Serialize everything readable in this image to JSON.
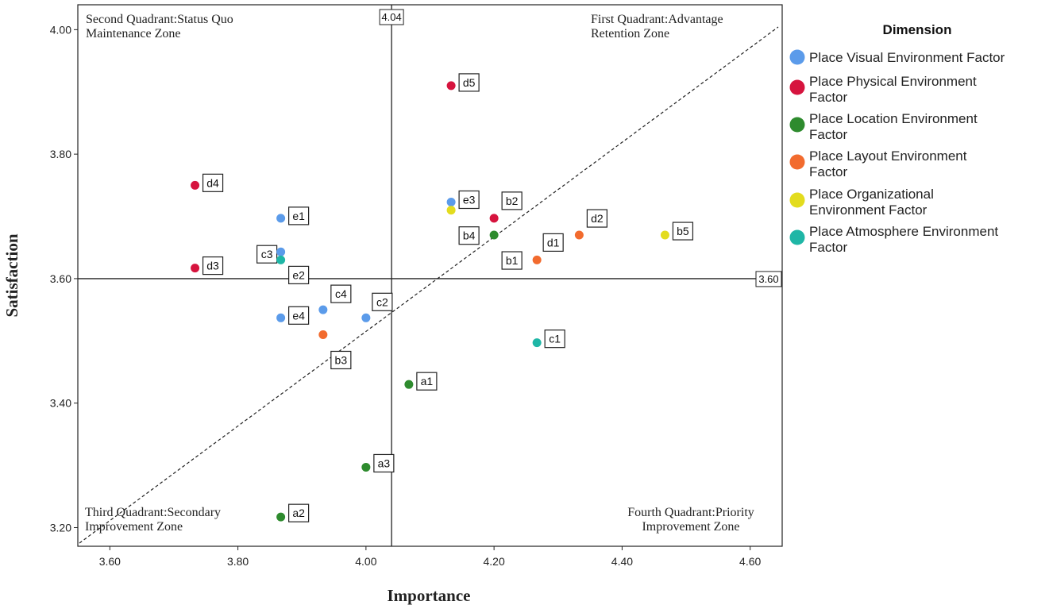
{
  "chart_data": {
    "type": "scatter",
    "xlabel": "Importance",
    "ylabel": "Satisfaction",
    "xlim": [
      3.55,
      4.65
    ],
    "ylim": [
      3.17,
      4.04
    ],
    "x_ticks": [
      "3.60",
      "3.80",
      "4.00",
      "4.20",
      "4.40",
      "4.60"
    ],
    "y_ticks": [
      "3.20",
      "3.40",
      "3.60",
      "3.80",
      "4.00"
    ],
    "reference_lines": {
      "x": 4.04,
      "x_label": "4.04",
      "y": 3.6,
      "y_label": "3.60",
      "diagonal": true
    },
    "quadrants": [
      {
        "name": "second",
        "lines": [
          "Second Quadrant:Status Quo",
          "Maintenance Zone"
        ]
      },
      {
        "name": "first",
        "lines": [
          "First Quadrant:Advantage",
          "Retention Zone"
        ]
      },
      {
        "name": "third",
        "lines": [
          "Third Quadrant:Secondary",
          "Improvement Zone"
        ]
      },
      {
        "name": "fourth",
        "lines": [
          "Fourth Quadrant:Priority",
          "Improvement Zone"
        ]
      }
    ],
    "legend": {
      "title": "Dimension",
      "entries": [
        {
          "lines": [
            "Place Visual Environment Factor"
          ],
          "color": "#5b9bea"
        },
        {
          "lines": [
            "Place Physical Environment",
            "Factor"
          ],
          "color": "#d6143e"
        },
        {
          "lines": [
            "Place Location Environment",
            "Factor"
          ],
          "color": "#2e8b2e"
        },
        {
          "lines": [
            "Place Layout Environment",
            "Factor"
          ],
          "color": "#f26b2e"
        },
        {
          "lines": [
            "Place Organizational",
            "Environment Factor"
          ],
          "color": "#e3dc1e"
        },
        {
          "lines": [
            "Place Atmosphere Environment",
            "Factor"
          ],
          "color": "#1fb6a6"
        }
      ]
    },
    "series": [
      {
        "name": "Place Visual Environment Factor",
        "color": "#5b9bea",
        "points": [
          {
            "label": "e1",
            "x": 3.867,
            "y": 3.697,
            "dx": 10,
            "dy": -14
          },
          {
            "label": "c3",
            "x": 3.867,
            "y": 3.643,
            "dx": -30,
            "dy": -8
          },
          {
            "label": "e4",
            "x": 3.867,
            "y": 3.537,
            "dx": 10,
            "dy": -14
          },
          {
            "label": "c4",
            "x": 3.933,
            "y": 3.55,
            "dx": 10,
            "dy": -31
          },
          {
            "label": "c2",
            "x": 4.0,
            "y": 3.537,
            "dx": 8,
            "dy": -31
          },
          {
            "label": "e3",
            "x": 4.133,
            "y": 3.723,
            "dx": 10,
            "dy": -14
          }
        ]
      },
      {
        "name": "Place Physical Environment Factor",
        "color": "#d6143e",
        "points": [
          {
            "label": "d4",
            "x": 3.733,
            "y": 3.75,
            "dx": 10,
            "dy": -14
          },
          {
            "label": "d3",
            "x": 3.733,
            "y": 3.617,
            "dx": 10,
            "dy": -14
          },
          {
            "label": "d5",
            "x": 4.133,
            "y": 3.91,
            "dx": 10,
            "dy": -15
          },
          {
            "label": "b2",
            "x": 4.2,
            "y": 3.697,
            "dx": 10,
            "dy": -33
          }
        ]
      },
      {
        "name": "Place Location Environment Factor",
        "color": "#2e8b2e",
        "points": [
          {
            "label": "b1",
            "x": 4.2,
            "y": 3.67,
            "dx": 10,
            "dy": 21
          },
          {
            "label": "a1",
            "x": 4.067,
            "y": 3.43,
            "dx": 10,
            "dy": -15
          },
          {
            "label": "a3",
            "x": 4.0,
            "y": 3.297,
            "dx": 10,
            "dy": -16
          },
          {
            "label": "a2",
            "x": 3.867,
            "y": 3.217,
            "dx": 10,
            "dy": -16
          }
        ]
      },
      {
        "name": "Place Layout Environment Factor",
        "color": "#f26b2e",
        "points": [
          {
            "label": "d2",
            "x": 4.333,
            "y": 3.67,
            "dx": 10,
            "dy": -32
          },
          {
            "label": "d1",
            "x": 4.267,
            "y": 3.63,
            "dx": 8,
            "dy": -33
          },
          {
            "label": "b3",
            "x": 3.933,
            "y": 3.51,
            "dx": 10,
            "dy": 21
          }
        ]
      },
      {
        "name": "Place Organizational Environment Factor",
        "color": "#e3dc1e",
        "points": [
          {
            "label": "b5",
            "x": 4.467,
            "y": 3.67,
            "dx": 10,
            "dy": -16
          },
          {
            "label": "b4",
            "x": 4.133,
            "y": 3.71,
            "dx": 10,
            "dy": 21
          }
        ]
      },
      {
        "name": "Place Atmosphere Environment Factor",
        "color": "#1fb6a6",
        "points": [
          {
            "label": "e2",
            "x": 3.867,
            "y": 3.63,
            "dx": 10,
            "dy": 8
          },
          {
            "label": "c1",
            "x": 4.267,
            "y": 3.497,
            "dx": 10,
            "dy": -16
          }
        ]
      }
    ]
  }
}
